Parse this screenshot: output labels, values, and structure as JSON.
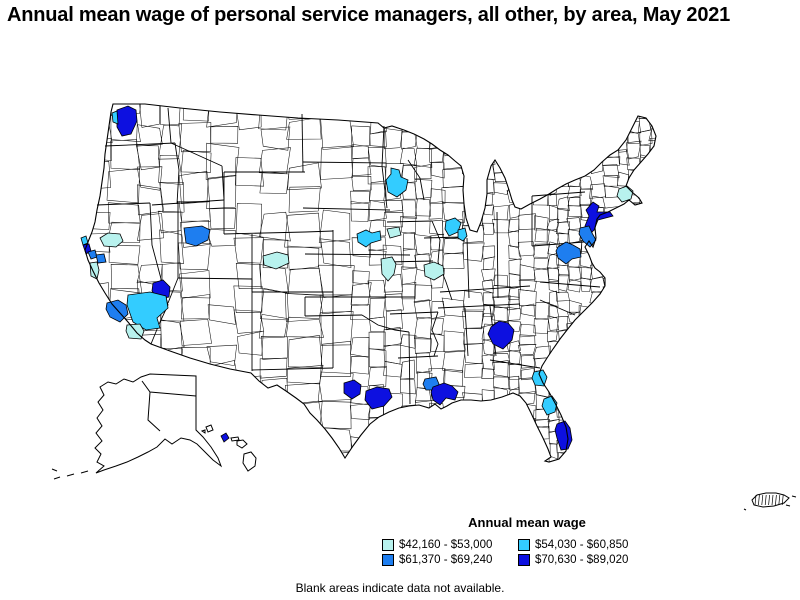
{
  "title": "Annual mean wage of personal service managers, all other, by area, May 2021",
  "footnote": "Blank areas indicate data not available.",
  "legend": {
    "title": "Annual mean wage",
    "items": [
      {
        "label": "$42,160 - $53,000",
        "color": "#b8f2ee"
      },
      {
        "label": "$54,030 - $60,850",
        "color": "#33ccff"
      },
      {
        "label": "$61,370 - $69,240",
        "color": "#1e7ef0"
      },
      {
        "label": "$70,630 - $89,020",
        "color": "#0d10e0"
      }
    ]
  },
  "map": {
    "land_color": "#ffffff",
    "boundary_color": "#000000",
    "areas": [
      {
        "id": "seattle",
        "bracket": 4,
        "points": [
          [
            117,
            110
          ],
          [
            128,
            106
          ],
          [
            136,
            110
          ],
          [
            137,
            121
          ],
          [
            131,
            134
          ],
          [
            122,
            136
          ],
          [
            117,
            127
          ]
        ]
      },
      {
        "id": "seattle-west",
        "bracket": 2,
        "points": [
          [
            112,
            113
          ],
          [
            117,
            111
          ],
          [
            118,
            124
          ],
          [
            113,
            122
          ]
        ]
      },
      {
        "id": "sacramento",
        "bracket": 1,
        "points": [
          [
            100,
            238
          ],
          [
            108,
            233
          ],
          [
            120,
            234
          ],
          [
            123,
            241
          ],
          [
            116,
            247
          ],
          [
            104,
            246
          ]
        ]
      },
      {
        "id": "santa-rosa",
        "bracket": 2,
        "points": [
          [
            81,
            238
          ],
          [
            86,
            236
          ],
          [
            88,
            243
          ],
          [
            83,
            245
          ]
        ]
      },
      {
        "id": "san-francisco",
        "bracket": 4,
        "points": [
          [
            83,
            245
          ],
          [
            89,
            244
          ],
          [
            91,
            251
          ],
          [
            86,
            254
          ]
        ]
      },
      {
        "id": "san-jose",
        "bracket": 3,
        "points": [
          [
            88,
            252
          ],
          [
            95,
            250
          ],
          [
            97,
            257
          ],
          [
            91,
            259
          ]
        ]
      },
      {
        "id": "stockton",
        "bracket": 3,
        "points": [
          [
            96,
            255
          ],
          [
            104,
            254
          ],
          [
            106,
            262
          ],
          [
            98,
            263
          ]
        ]
      },
      {
        "id": "central-valley",
        "bracket": 1,
        "points": [
          [
            90,
            263
          ],
          [
            97,
            262
          ],
          [
            99,
            270
          ],
          [
            97,
            279
          ],
          [
            91,
            276
          ]
        ]
      },
      {
        "id": "salt-lake-city",
        "bracket": 3,
        "points": [
          [
            184,
            228
          ],
          [
            202,
            226
          ],
          [
            210,
            230
          ],
          [
            208,
            240
          ],
          [
            196,
            246
          ],
          [
            186,
            243
          ]
        ]
      },
      {
        "id": "las-vegas",
        "bracket": 4,
        "points": [
          [
            153,
            283
          ],
          [
            163,
            280
          ],
          [
            170,
            287
          ],
          [
            169,
            297
          ],
          [
            158,
            299
          ],
          [
            152,
            291
          ]
        ]
      },
      {
        "id": "riverside-san-bernardino",
        "bracket": 2,
        "points": [
          [
            128,
            295
          ],
          [
            150,
            292
          ],
          [
            166,
            296
          ],
          [
            168,
            308
          ],
          [
            157,
            318
          ],
          [
            160,
            328
          ],
          [
            146,
            330
          ],
          [
            133,
            322
          ],
          [
            127,
            305
          ]
        ]
      },
      {
        "id": "los-angeles",
        "bracket": 3,
        "points": [
          [
            107,
            303
          ],
          [
            118,
            300
          ],
          [
            126,
            305
          ],
          [
            128,
            314
          ],
          [
            120,
            322
          ],
          [
            110,
            317
          ],
          [
            106,
            309
          ]
        ]
      },
      {
        "id": "san-diego",
        "bracket": 1,
        "points": [
          [
            127,
            325
          ],
          [
            140,
            324
          ],
          [
            144,
            331
          ],
          [
            141,
            339
          ],
          [
            129,
            338
          ],
          [
            126,
            331
          ]
        ]
      },
      {
        "id": "front-range",
        "bracket": 1,
        "points": [
          [
            263,
            256
          ],
          [
            277,
            252
          ],
          [
            288,
            255
          ],
          [
            289,
            263
          ],
          [
            276,
            269
          ],
          [
            264,
            265
          ]
        ]
      },
      {
        "id": "minneapolis",
        "bracket": 2,
        "points": [
          [
            391,
            168
          ],
          [
            399,
            170
          ],
          [
            401,
            177
          ],
          [
            408,
            180
          ],
          [
            406,
            190
          ],
          [
            397,
            197
          ],
          [
            388,
            192
          ],
          [
            386,
            180
          ],
          [
            391,
            174
          ]
        ]
      },
      {
        "id": "omaha",
        "bracket": 2,
        "points": [
          [
            357,
            234
          ],
          [
            366,
            230
          ],
          [
            372,
            233
          ],
          [
            380,
            231
          ],
          [
            381,
            240
          ],
          [
            371,
            243
          ],
          [
            366,
            247
          ],
          [
            358,
            242
          ]
        ]
      },
      {
        "id": "des-moines",
        "bracket": 1,
        "points": [
          [
            387,
            229
          ],
          [
            399,
            227
          ],
          [
            401,
            235
          ],
          [
            390,
            238
          ]
        ]
      },
      {
        "id": "kansas-city",
        "bracket": 1,
        "points": [
          [
            381,
            259
          ],
          [
            392,
            257
          ],
          [
            396,
            264
          ],
          [
            394,
            274
          ],
          [
            388,
            281
          ],
          [
            382,
            274
          ]
        ]
      },
      {
        "id": "central-illinois",
        "bracket": 1,
        "points": [
          [
            424,
            265
          ],
          [
            434,
            262
          ],
          [
            443,
            266
          ],
          [
            444,
            274
          ],
          [
            434,
            280
          ],
          [
            425,
            276
          ]
        ]
      },
      {
        "id": "milwaukee",
        "bracket": 2,
        "points": [
          [
            446,
            221
          ],
          [
            455,
            218
          ],
          [
            461,
            223
          ],
          [
            458,
            232
          ],
          [
            449,
            236
          ],
          [
            445,
            229
          ]
        ]
      },
      {
        "id": "chicago",
        "bracket": 2,
        "points": [
          [
            458,
            230
          ],
          [
            465,
            228
          ],
          [
            467,
            236
          ],
          [
            463,
            241
          ],
          [
            458,
            238
          ]
        ]
      },
      {
        "id": "boston",
        "bracket": 1,
        "points": [
          [
            619,
            189
          ],
          [
            627,
            186
          ],
          [
            633,
            191
          ],
          [
            631,
            199
          ],
          [
            622,
            202
          ],
          [
            617,
            196
          ]
        ]
      },
      {
        "id": "new-york",
        "bracket": 4,
        "points": [
          [
            586,
            210
          ],
          [
            593,
            202
          ],
          [
            599,
            206
          ],
          [
            597,
            212
          ],
          [
            610,
            212
          ],
          [
            613,
            216
          ],
          [
            598,
            220
          ],
          [
            594,
            230
          ],
          [
            589,
            235
          ],
          [
            585,
            226
          ],
          [
            589,
            216
          ]
        ]
      },
      {
        "id": "philadelphia",
        "bracket": 3,
        "points": [
          [
            580,
            228
          ],
          [
            589,
            226
          ],
          [
            592,
            233
          ],
          [
            596,
            240
          ],
          [
            590,
            247
          ],
          [
            583,
            241
          ],
          [
            579,
            234
          ]
        ]
      },
      {
        "id": "washington-baltimore",
        "bracket": 3,
        "points": [
          [
            558,
            247
          ],
          [
            566,
            242
          ],
          [
            573,
            245
          ],
          [
            580,
            249
          ],
          [
            581,
            257
          ],
          [
            572,
            259
          ],
          [
            566,
            264
          ],
          [
            558,
            258
          ],
          [
            556,
            251
          ]
        ]
      },
      {
        "id": "atlanta",
        "bracket": 4,
        "points": [
          [
            491,
            327
          ],
          [
            499,
            321
          ],
          [
            508,
            323
          ],
          [
            514,
            330
          ],
          [
            512,
            340
          ],
          [
            503,
            349
          ],
          [
            493,
            344
          ],
          [
            488,
            334
          ]
        ]
      },
      {
        "id": "jacksonville",
        "bracket": 2,
        "points": [
          [
            534,
            372
          ],
          [
            543,
            370
          ],
          [
            547,
            377
          ],
          [
            544,
            386
          ],
          [
            535,
            385
          ],
          [
            532,
            378
          ]
        ]
      },
      {
        "id": "orlando",
        "bracket": 2,
        "points": [
          [
            544,
            399
          ],
          [
            552,
            396
          ],
          [
            557,
            403
          ],
          [
            555,
            412
          ],
          [
            547,
            415
          ],
          [
            542,
            406
          ]
        ]
      },
      {
        "id": "miami",
        "bracket": 4,
        "points": [
          [
            557,
            424
          ],
          [
            565,
            421
          ],
          [
            570,
            428
          ],
          [
            572,
            440
          ],
          [
            568,
            449
          ],
          [
            561,
            450
          ],
          [
            557,
            438
          ],
          [
            555,
            430
          ]
        ]
      },
      {
        "id": "austin",
        "bracket": 4,
        "points": [
          [
            344,
            383
          ],
          [
            354,
            380
          ],
          [
            361,
            385
          ],
          [
            360,
            394
          ],
          [
            352,
            399
          ],
          [
            344,
            393
          ]
        ]
      },
      {
        "id": "houston",
        "bracket": 4,
        "points": [
          [
            366,
            391
          ],
          [
            377,
            387
          ],
          [
            389,
            389
          ],
          [
            392,
            397
          ],
          [
            384,
            406
          ],
          [
            372,
            409
          ],
          [
            365,
            400
          ]
        ]
      },
      {
        "id": "baton-rouge",
        "bracket": 3,
        "points": [
          [
            425,
            379
          ],
          [
            436,
            377
          ],
          [
            439,
            384
          ],
          [
            436,
            390
          ],
          [
            426,
            390
          ],
          [
            423,
            384
          ]
        ]
      },
      {
        "id": "new-orleans",
        "bracket": 4,
        "points": [
          [
            433,
            387
          ],
          [
            444,
            383
          ],
          [
            452,
            386
          ],
          [
            458,
            392
          ],
          [
            455,
            400
          ],
          [
            446,
            398
          ],
          [
            440,
            405
          ],
          [
            433,
            400
          ],
          [
            431,
            392
          ]
        ]
      },
      {
        "id": "honolulu",
        "bracket": 4,
        "points": [
          [
            221,
            436
          ],
          [
            226,
            433
          ],
          [
            229,
            438
          ],
          [
            224,
            442
          ]
        ]
      }
    ]
  }
}
